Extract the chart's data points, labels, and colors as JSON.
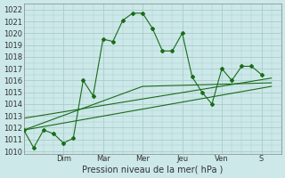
{
  "xlabel": "Pression niveau de la mer( hPa )",
  "bg_color": "#cce8e8",
  "grid_color": "#aacccc",
  "line_color": "#1a6b1a",
  "ylim": [
    1009.8,
    1022.5
  ],
  "yticks": [
    1010,
    1011,
    1012,
    1013,
    1014,
    1015,
    1016,
    1017,
    1018,
    1019,
    1020,
    1021,
    1022
  ],
  "day_labels": [
    "Dim",
    "Mar",
    "Mer",
    "Jeu",
    "Ven",
    "S"
  ],
  "day_positions": [
    2.0,
    4.0,
    6.0,
    8.0,
    10.0,
    12.0
  ],
  "xlim": [
    0.0,
    13.0
  ],
  "series1_x": [
    0,
    0.5,
    1.0,
    1.5,
    2.0,
    2.5,
    3.0,
    3.5,
    4.0,
    4.5,
    5.0,
    5.5,
    6.0,
    6.5,
    7.0,
    7.5,
    8.0,
    8.5,
    9.0,
    9.5,
    10.0,
    10.5,
    11.0,
    11.5,
    12.0
  ],
  "series1_y": [
    1011.8,
    1010.3,
    1011.8,
    1011.5,
    1010.7,
    1011.1,
    1016.0,
    1014.7,
    1019.5,
    1019.3,
    1021.1,
    1021.7,
    1021.7,
    1020.4,
    1018.5,
    1018.5,
    1020.0,
    1016.3,
    1015.0,
    1014.0,
    1017.0,
    1016.0,
    1017.2,
    1017.2,
    1016.5
  ],
  "series2_x": [
    0,
    12.5
  ],
  "series2_y": [
    1011.8,
    1015.5
  ],
  "series3_x": [
    0,
    12.5
  ],
  "series3_y": [
    1012.8,
    1016.2
  ],
  "series4_x": [
    0,
    6.0,
    12.5
  ],
  "series4_y": [
    1011.8,
    1015.5,
    1015.8
  ]
}
